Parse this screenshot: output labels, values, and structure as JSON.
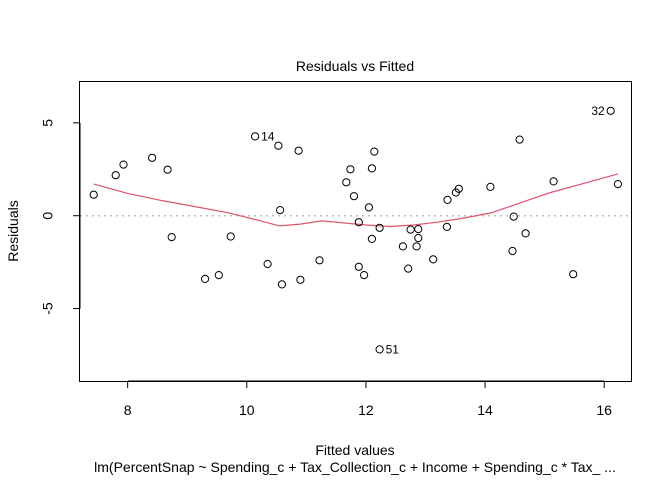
{
  "chart_data": {
    "type": "scatter",
    "title": "Residuals vs Fitted",
    "xlabel": "Fitted values",
    "ylabel": "Residuals",
    "subtitle": "lm(PercentSnap ~ Spending_c + Tax_Collection_c + Income + Spending_c * Tax_ ...",
    "xlim": [
      7.2,
      16.45
    ],
    "ylim": [
      -8.9,
      7.2
    ],
    "x_ticks": [
      8,
      10,
      12,
      14,
      16
    ],
    "y_ticks": [
      5,
      0,
      -5
    ],
    "x_tick_labels": [
      "8",
      "10",
      "12",
      "14",
      "16"
    ],
    "y_tick_labels": [
      "5",
      "0",
      "-5"
    ],
    "reference_line_y": 0,
    "grid": false,
    "colors": {
      "smoother": "#df536b",
      "reference": "#bebebe",
      "points": "#000000"
    },
    "points": [
      {
        "x": 7.43,
        "y": 1.13
      },
      {
        "x": 7.8,
        "y": 2.18
      },
      {
        "x": 7.93,
        "y": 2.75
      },
      {
        "x": 8.41,
        "y": 3.12
      },
      {
        "x": 8.67,
        "y": 2.48
      },
      {
        "x": 8.74,
        "y": -1.15
      },
      {
        "x": 9.3,
        "y": -3.4
      },
      {
        "x": 9.53,
        "y": -3.2
      },
      {
        "x": 9.73,
        "y": -1.12
      },
      {
        "x": 10.14,
        "y": 4.27,
        "label": "14"
      },
      {
        "x": 10.35,
        "y": -2.6
      },
      {
        "x": 10.53,
        "y": 3.77
      },
      {
        "x": 10.56,
        "y": 0.3
      },
      {
        "x": 10.59,
        "y": -3.7
      },
      {
        "x": 10.87,
        "y": 3.5
      },
      {
        "x": 10.9,
        "y": -3.45
      },
      {
        "x": 11.22,
        "y": -2.4
      },
      {
        "x": 11.67,
        "y": 1.8
      },
      {
        "x": 11.74,
        "y": 2.5
      },
      {
        "x": 11.8,
        "y": 1.05
      },
      {
        "x": 11.88,
        "y": -0.35
      },
      {
        "x": 11.88,
        "y": -2.75
      },
      {
        "x": 11.97,
        "y": -3.2
      },
      {
        "x": 12.05,
        "y": 0.45
      },
      {
        "x": 12.1,
        "y": 2.55
      },
      {
        "x": 12.1,
        "y": -1.25
      },
      {
        "x": 12.14,
        "y": 3.45
      },
      {
        "x": 12.23,
        "y": -0.65
      },
      {
        "x": 12.23,
        "y": -7.2,
        "label": "51"
      },
      {
        "x": 12.62,
        "y": -1.65
      },
      {
        "x": 12.71,
        "y": -2.85
      },
      {
        "x": 12.75,
        "y": -0.75
      },
      {
        "x": 12.85,
        "y": -1.65
      },
      {
        "x": 12.88,
        "y": -1.2
      },
      {
        "x": 12.88,
        "y": -0.72
      },
      {
        "x": 13.13,
        "y": -2.35
      },
      {
        "x": 13.36,
        "y": -0.6
      },
      {
        "x": 13.37,
        "y": 0.85
      },
      {
        "x": 13.51,
        "y": 1.25
      },
      {
        "x": 13.56,
        "y": 1.45
      },
      {
        "x": 14.09,
        "y": 1.55
      },
      {
        "x": 14.46,
        "y": -1.9
      },
      {
        "x": 14.48,
        "y": -0.05
      },
      {
        "x": 14.58,
        "y": 4.1
      },
      {
        "x": 14.68,
        "y": -0.95
      },
      {
        "x": 15.15,
        "y": 1.85
      },
      {
        "x": 15.48,
        "y": -3.15
      },
      {
        "x": 16.11,
        "y": 5.65,
        "label": "32"
      },
      {
        "x": 16.23,
        "y": 1.7
      }
    ],
    "smoother": [
      {
        "x": 7.43,
        "y": 1.7
      },
      {
        "x": 8.0,
        "y": 1.2
      },
      {
        "x": 8.6,
        "y": 0.8
      },
      {
        "x": 9.2,
        "y": 0.45
      },
      {
        "x": 9.7,
        "y": 0.15
      },
      {
        "x": 10.2,
        "y": -0.25
      },
      {
        "x": 10.55,
        "y": -0.55
      },
      {
        "x": 10.9,
        "y": -0.45
      },
      {
        "x": 11.25,
        "y": -0.28
      },
      {
        "x": 11.6,
        "y": -0.38
      },
      {
        "x": 12.0,
        "y": -0.5
      },
      {
        "x": 12.4,
        "y": -0.58
      },
      {
        "x": 12.8,
        "y": -0.5
      },
      {
        "x": 13.2,
        "y": -0.35
      },
      {
        "x": 13.6,
        "y": -0.15
      },
      {
        "x": 14.1,
        "y": 0.15
      },
      {
        "x": 14.6,
        "y": 0.7
      },
      {
        "x": 15.1,
        "y": 1.25
      },
      {
        "x": 15.7,
        "y": 1.78
      },
      {
        "x": 16.23,
        "y": 2.25
      }
    ]
  }
}
